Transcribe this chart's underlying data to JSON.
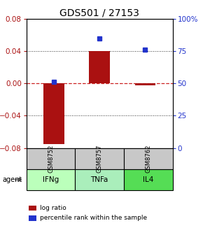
{
  "title": "GDS501 / 27153",
  "samples": [
    "GSM8752",
    "GSM8757",
    "GSM8762"
  ],
  "agents": [
    "IFNg",
    "TNFa",
    "IL4"
  ],
  "log_ratios": [
    -0.075,
    0.04,
    -0.002
  ],
  "percentile_ranks": [
    51,
    85,
    76
  ],
  "ylim_left": [
    -0.08,
    0.08
  ],
  "ylim_right": [
    0,
    100
  ],
  "yticks_left": [
    -0.08,
    -0.04,
    0,
    0.04,
    0.08
  ],
  "yticks_right": [
    0,
    25,
    50,
    75,
    100
  ],
  "ytick_labels_right": [
    "0",
    "25",
    "50",
    "75",
    "100%"
  ],
  "bar_color": "#aa1111",
  "dot_color": "#2233cc",
  "zero_line_color": "#cc2222",
  "bg_color": "#ffffff",
  "plot_bg": "#ffffff",
  "gray_color": "#c8c8c8",
  "green_colors": [
    "#bbffbb",
    "#aaeebb",
    "#55dd55"
  ],
  "agent_label": "agent",
  "legend_bar": "log ratio",
  "legend_dot": "percentile rank within the sample",
  "title_fontsize": 10,
  "tick_fontsize": 7.5,
  "label_fontsize": 7
}
